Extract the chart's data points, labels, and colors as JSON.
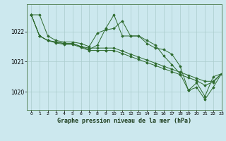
{
  "title": "Graphe pression niveau de la mer (hPa)",
  "bg_color": "#cce8ee",
  "grid_color": "#aacccc",
  "line_color": "#2d6a2d",
  "xlim": [
    -0.5,
    23
  ],
  "ylim": [
    1019.4,
    1022.9
  ],
  "yticks": [
    1020,
    1021,
    1022
  ],
  "xticks": [
    0,
    1,
    2,
    3,
    4,
    5,
    6,
    7,
    8,
    9,
    10,
    11,
    12,
    13,
    14,
    15,
    16,
    17,
    18,
    19,
    20,
    21,
    22,
    23
  ],
  "series": [
    [
      1022.55,
      1022.55,
      1021.85,
      1021.7,
      1021.65,
      1021.65,
      1021.6,
      1021.5,
      1021.95,
      1022.05,
      1022.1,
      1022.35,
      1021.85,
      1021.85,
      1021.6,
      1021.45,
      1021.4,
      1021.25,
      1020.85,
      1020.05,
      1020.3,
      1019.85,
      1020.5,
      1020.6
    ],
    [
      1022.55,
      1021.85,
      1021.7,
      1021.65,
      1021.6,
      1021.6,
      1021.5,
      1021.4,
      1021.55,
      1022.1,
      1022.55,
      1021.85,
      1021.85,
      1021.85,
      1021.7,
      1021.55,
      1021.2,
      1020.9,
      1020.6,
      1020.05,
      1020.15,
      1019.75,
      1020.15,
      1020.6
    ],
    [
      1022.55,
      1021.85,
      1021.7,
      1021.65,
      1021.6,
      1021.6,
      1021.5,
      1021.45,
      1021.45,
      1021.45,
      1021.45,
      1021.35,
      1021.25,
      1021.15,
      1021.05,
      1020.95,
      1020.85,
      1020.75,
      1020.65,
      1020.55,
      1020.45,
      1020.35,
      1020.35,
      1020.6
    ],
    [
      1022.55,
      1021.85,
      1021.7,
      1021.62,
      1021.57,
      1021.57,
      1021.47,
      1021.37,
      1021.37,
      1021.37,
      1021.37,
      1021.27,
      1021.17,
      1021.07,
      1020.97,
      1020.87,
      1020.77,
      1020.67,
      1020.57,
      1020.47,
      1020.37,
      1020.22,
      1020.32,
      1020.6
    ]
  ]
}
